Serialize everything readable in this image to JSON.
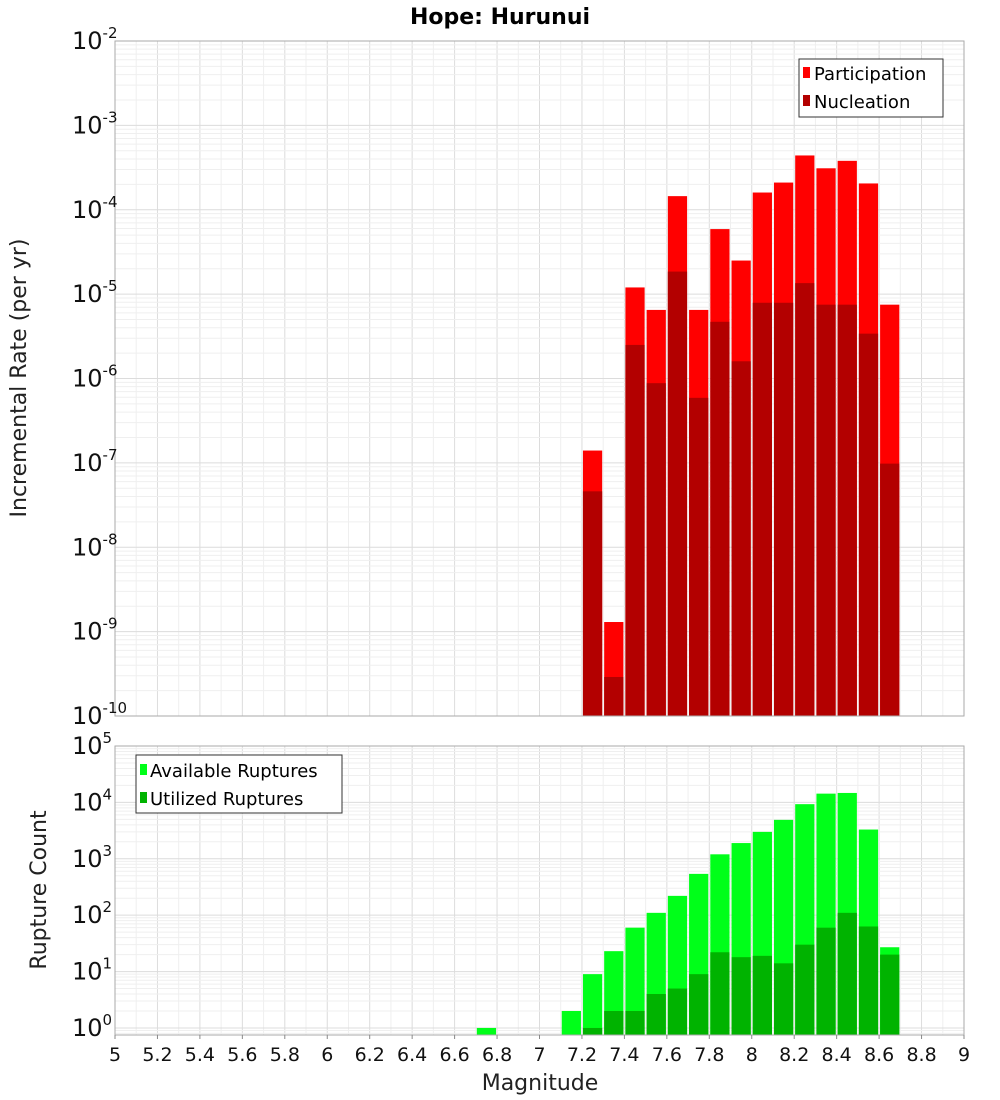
{
  "title": "Hope: Hurunui",
  "x_axis": {
    "label": "Magnitude",
    "min": 5,
    "max": 9,
    "ticks": [
      "5",
      "5.2",
      "5.4",
      "5.6",
      "5.8",
      "6",
      "6.2",
      "6.4",
      "6.6",
      "6.8",
      "7",
      "7.2",
      "7.4",
      "7.6",
      "7.8",
      "8",
      "8.2",
      "8.4",
      "8.6",
      "8.8",
      "9"
    ]
  },
  "colors": {
    "participation": "#ff0000",
    "nucleation": "#b30000",
    "available": "#00ff19",
    "utilized": "#00b300"
  },
  "chart_data": [
    {
      "type": "bar",
      "log_scale_y": true,
      "title": "Hope: Hurunui",
      "xlabel": "Magnitude",
      "ylabel": "Incremental Rate (per yr)",
      "xlim": [
        5,
        9
      ],
      "ylim": [
        1e-10,
        0.01
      ],
      "y_tick_exponents": [
        -2,
        -3,
        -4,
        -5,
        -6,
        -7,
        -8,
        -9,
        -10
      ],
      "grid": true,
      "legend_position": "top-right",
      "x": [
        7.25,
        7.35,
        7.45,
        7.55,
        7.65,
        7.75,
        7.85,
        7.95,
        8.05,
        8.15,
        8.25,
        8.35,
        8.45,
        8.55,
        8.65
      ],
      "series": [
        {
          "name": "Participation",
          "values": [
            1.4e-07,
            1.3e-09,
            1.2e-05,
            6.5e-06,
            0.000145,
            6.5e-06,
            5.9e-05,
            2.5e-05,
            0.00016,
            0.00021,
            0.00044,
            0.00031,
            0.00038,
            0.000205,
            7.5e-06
          ]
        },
        {
          "name": "Nucleation",
          "values": [
            4.6e-08,
            2.9e-10,
            2.5e-06,
            8.8e-07,
            1.85e-05,
            5.9e-07,
            4.7e-06,
            1.6e-06,
            7.9e-06,
            7.9e-06,
            1.35e-05,
            7.5e-06,
            7.5e-06,
            3.4e-06,
            9.8e-08
          ]
        }
      ]
    },
    {
      "type": "bar",
      "log_scale_y": true,
      "xlabel": "Magnitude",
      "ylabel": "Rupture Count",
      "xlim": [
        5,
        9
      ],
      "ylim": [
        0.75,
        100000
      ],
      "y_tick_exponents": [
        5,
        4,
        3,
        2,
        1,
        0
      ],
      "grid": true,
      "legend_position": "top-left",
      "x": [
        6.75,
        7.15,
        7.25,
        7.35,
        7.45,
        7.55,
        7.65,
        7.75,
        7.85,
        7.95,
        8.05,
        8.15,
        8.25,
        8.35,
        8.45,
        8.55,
        8.65
      ],
      "series": [
        {
          "name": "Available Ruptures",
          "values": [
            1,
            2,
            9,
            23,
            60,
            110,
            220,
            540,
            1200,
            1900,
            3000,
            4900,
            9300,
            14300,
            14700,
            3300,
            27
          ]
        },
        {
          "name": "Utilized Ruptures",
          "values": [
            0,
            0,
            1,
            2,
            2,
            4,
            5,
            9,
            22,
            18,
            19,
            14,
            30,
            60,
            110,
            63,
            20
          ]
        }
      ]
    }
  ]
}
